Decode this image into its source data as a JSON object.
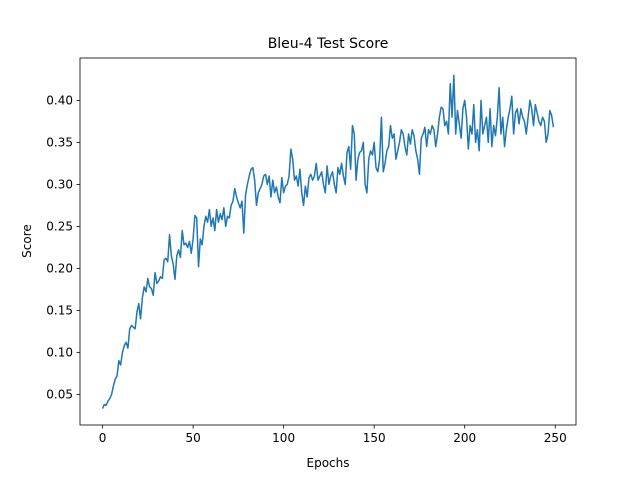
{
  "chart_data": {
    "type": "line",
    "title": "Bleu-4 Test Score",
    "xlabel": "Epochs",
    "ylabel": "Score",
    "x": [
      0,
      1,
      2,
      3,
      4,
      5,
      6,
      7,
      8,
      9,
      10,
      11,
      12,
      13,
      14,
      15,
      16,
      17,
      18,
      19,
      20,
      21,
      22,
      23,
      24,
      25,
      26,
      27,
      28,
      29,
      30,
      31,
      32,
      33,
      34,
      35,
      36,
      37,
      38,
      39,
      40,
      41,
      42,
      43,
      44,
      45,
      46,
      47,
      48,
      49,
      50,
      51,
      52,
      53,
      54,
      55,
      56,
      57,
      58,
      59,
      60,
      61,
      62,
      63,
      64,
      65,
      66,
      67,
      68,
      69,
      70,
      71,
      72,
      73,
      74,
      75,
      76,
      77,
      78,
      79,
      80,
      81,
      82,
      83,
      84,
      85,
      86,
      87,
      88,
      89,
      90,
      91,
      92,
      93,
      94,
      95,
      96,
      97,
      98,
      99,
      100,
      101,
      102,
      103,
      104,
      105,
      106,
      107,
      108,
      109,
      110,
      111,
      112,
      113,
      114,
      115,
      116,
      117,
      118,
      119,
      120,
      121,
      122,
      123,
      124,
      125,
      126,
      127,
      128,
      129,
      130,
      131,
      132,
      133,
      134,
      135,
      136,
      137,
      138,
      139,
      140,
      141,
      142,
      143,
      144,
      145,
      146,
      147,
      148,
      149,
      150,
      151,
      152,
      153,
      154,
      155,
      156,
      157,
      158,
      159,
      160,
      161,
      162,
      163,
      164,
      165,
      166,
      167,
      168,
      169,
      170,
      171,
      172,
      173,
      174,
      175,
      176,
      177,
      178,
      179,
      180,
      181,
      182,
      183,
      184,
      185,
      186,
      187,
      188,
      189,
      190,
      191,
      192,
      193,
      194,
      195,
      196,
      197,
      198,
      199,
      200,
      201,
      202,
      203,
      204,
      205,
      206,
      207,
      208,
      209,
      210,
      211,
      212,
      213,
      214,
      215,
      216,
      217,
      218,
      219,
      220,
      221,
      222,
      223,
      224,
      225,
      226,
      227,
      228,
      229,
      230,
      231,
      232,
      233,
      234,
      235,
      236,
      237,
      238,
      239,
      240,
      241,
      242,
      243,
      244,
      245,
      246,
      247,
      248,
      249
    ],
    "series": [
      {
        "color": "#1f77b4",
        "values": [
          0.033,
          0.038,
          0.037,
          0.042,
          0.045,
          0.05,
          0.06,
          0.068,
          0.072,
          0.09,
          0.085,
          0.1,
          0.108,
          0.112,
          0.105,
          0.128,
          0.132,
          0.13,
          0.128,
          0.148,
          0.158,
          0.14,
          0.165,
          0.178,
          0.172,
          0.188,
          0.178,
          0.176,
          0.168,
          0.195,
          0.182,
          0.185,
          0.19,
          0.188,
          0.21,
          0.212,
          0.208,
          0.24,
          0.215,
          0.205,
          0.187,
          0.215,
          0.222,
          0.213,
          0.245,
          0.228,
          0.23,
          0.225,
          0.232,
          0.218,
          0.235,
          0.263,
          0.26,
          0.202,
          0.235,
          0.228,
          0.25,
          0.262,
          0.255,
          0.27,
          0.25,
          0.26,
          0.245,
          0.27,
          0.255,
          0.265,
          0.258,
          0.272,
          0.25,
          0.262,
          0.26,
          0.275,
          0.28,
          0.295,
          0.285,
          0.278,
          0.272,
          0.28,
          0.242,
          0.288,
          0.3,
          0.31,
          0.318,
          0.32,
          0.305,
          0.275,
          0.29,
          0.295,
          0.3,
          0.31,
          0.312,
          0.3,
          0.31,
          0.285,
          0.305,
          0.29,
          0.297,
          0.285,
          0.278,
          0.308,
          0.29,
          0.298,
          0.3,
          0.31,
          0.342,
          0.33,
          0.305,
          0.31,
          0.298,
          0.318,
          0.29,
          0.275,
          0.298,
          0.285,
          0.308,
          0.312,
          0.305,
          0.31,
          0.325,
          0.305,
          0.31,
          0.315,
          0.3,
          0.29,
          0.322,
          0.3,
          0.31,
          0.315,
          0.3,
          0.29,
          0.32,
          0.312,
          0.325,
          0.31,
          0.3,
          0.338,
          0.345,
          0.318,
          0.37,
          0.36,
          0.305,
          0.33,
          0.338,
          0.34,
          0.35,
          0.3,
          0.29,
          0.33,
          0.34,
          0.335,
          0.35,
          0.32,
          0.315,
          0.33,
          0.38,
          0.315,
          0.325,
          0.34,
          0.345,
          0.37,
          0.355,
          0.36,
          0.33,
          0.34,
          0.35,
          0.365,
          0.36,
          0.345,
          0.335,
          0.36,
          0.348,
          0.365,
          0.358,
          0.34,
          0.33,
          0.312,
          0.355,
          0.36,
          0.368,
          0.345,
          0.365,
          0.36,
          0.37,
          0.365,
          0.345,
          0.36,
          0.38,
          0.392,
          0.39,
          0.37,
          0.375,
          0.36,
          0.42,
          0.38,
          0.43,
          0.36,
          0.388,
          0.372,
          0.355,
          0.39,
          0.4,
          0.38,
          0.342,
          0.37,
          0.36,
          0.395,
          0.35,
          0.365,
          0.34,
          0.4,
          0.36,
          0.37,
          0.38,
          0.35,
          0.39,
          0.345,
          0.37,
          0.358,
          0.38,
          0.415,
          0.36,
          0.38,
          0.345,
          0.365,
          0.38,
          0.39,
          0.405,
          0.36,
          0.385,
          0.39,
          0.372,
          0.39,
          0.38,
          0.375,
          0.36,
          0.38,
          0.4,
          0.39,
          0.37,
          0.395,
          0.385,
          0.375,
          0.37,
          0.38,
          0.375,
          0.35,
          0.36,
          0.388,
          0.382,
          0.368
        ]
      }
    ],
    "xlim": [
      -12.45,
      261.45
    ],
    "ylim": [
      0.0135,
      0.4505
    ],
    "xticks": [
      0,
      50,
      100,
      150,
      200,
      250
    ],
    "yticks": [
      {
        "value": 0.05,
        "label": "0.05"
      },
      {
        "value": 0.1,
        "label": "0.10"
      },
      {
        "value": 0.15,
        "label": "0.15"
      },
      {
        "value": 0.2,
        "label": "0.20"
      },
      {
        "value": 0.25,
        "label": "0.25"
      },
      {
        "value": 0.3,
        "label": "0.30"
      },
      {
        "value": 0.35,
        "label": "0.35"
      },
      {
        "value": 0.4,
        "label": "0.40"
      }
    ]
  }
}
